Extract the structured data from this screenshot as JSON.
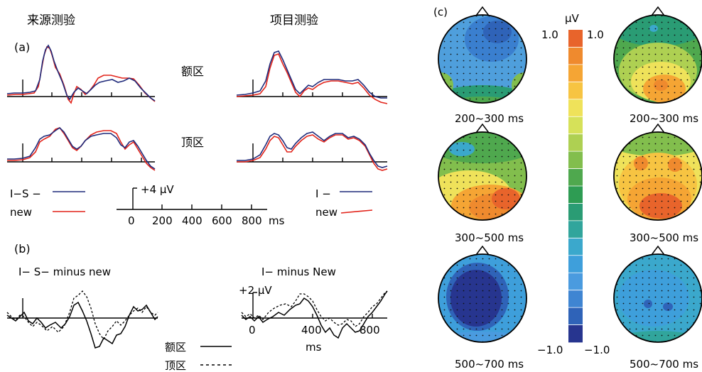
{
  "panel_labels": {
    "a": "(a)",
    "b": "(b)",
    "c": "(c)"
  },
  "panel_a": {
    "col_left_title": "来源测验",
    "col_right_title": "项目测验",
    "row_top_label": "额区",
    "row_bottom_label": "顶区",
    "legend_left": [
      {
        "label": "I−S −",
        "color": "#1f2a7a"
      },
      {
        "label": "new",
        "color": "#e2231a"
      }
    ],
    "legend_right": [
      {
        "label": "I −",
        "color": "#1f2a7a"
      },
      {
        "label": "new",
        "color": "#e2231a"
      }
    ],
    "scale_amplitude": "+4 μV",
    "scale_ticks": [
      "0",
      "200",
      "400",
      "600",
      "800"
    ],
    "scale_unit": "ms"
  },
  "panel_b": {
    "left_title": "I− S− minus new",
    "right_title": "I− minus New",
    "scale_amplitude": "+2 μV",
    "scale_ticks": [
      "0",
      "400",
      "800"
    ],
    "scale_unit": "ms",
    "legend": [
      {
        "label": "额区",
        "style": "solid"
      },
      {
        "label": "顶区",
        "style": "dashed"
      }
    ]
  },
  "panel_c": {
    "colorbar_unit": "μV",
    "colorbar_max": "1.0",
    "colorbar_min": "−1.0",
    "colorbar_max_right": "1.0",
    "colorbar_min_right": "−1.0",
    "colorbar_colors": [
      "#e8642b",
      "#ef8a2e",
      "#f5a534",
      "#f7c442",
      "#efe25a",
      "#d6e159",
      "#aed052",
      "#82be4d",
      "#4fa84e",
      "#2e9c53",
      "#2a9c74",
      "#31a59c",
      "#3ba8cc",
      "#3e9fdb",
      "#4a9bdf",
      "#3f85d2",
      "#2f63b8",
      "#27358f"
    ],
    "maps_left": [
      {
        "label": "200~300 ms"
      },
      {
        "label": "300~500 ms"
      },
      {
        "label": "500~700 ms"
      }
    ],
    "maps_right": [
      {
        "label": "200~300 ms"
      },
      {
        "label": "300~500 ms"
      },
      {
        "label": "500~700 ms"
      }
    ]
  }
}
